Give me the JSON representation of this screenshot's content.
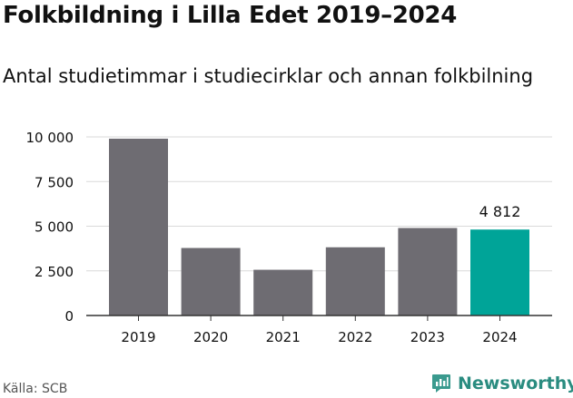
{
  "title": "Folkbildning i Lilla Edet 2019–2024",
  "subtitle": "Antal studietimmar i studiecirklar och annan folkbilning",
  "source": "Källa: SCB",
  "brand": "Newsworthy",
  "colors": {
    "bar": "#6e6c72",
    "highlight": "#00a498",
    "grid": "#d9d9d9",
    "axis": "#333333",
    "brand": "#2a8c80"
  },
  "chart_data": {
    "type": "bar",
    "categories": [
      "2019",
      "2020",
      "2021",
      "2022",
      "2023",
      "2024"
    ],
    "values": [
      9900,
      3780,
      2560,
      3820,
      4900,
      4812
    ],
    "highlight_index": 5,
    "data_labels": [
      {
        "index": 5,
        "text": "4 812"
      }
    ],
    "yticks": [
      0,
      2500,
      5000,
      7500,
      10000
    ],
    "ytick_labels": [
      "0",
      "2 500",
      "5 000",
      "7 500",
      "10 000"
    ],
    "ylim": [
      0,
      10000
    ],
    "grid": true
  }
}
